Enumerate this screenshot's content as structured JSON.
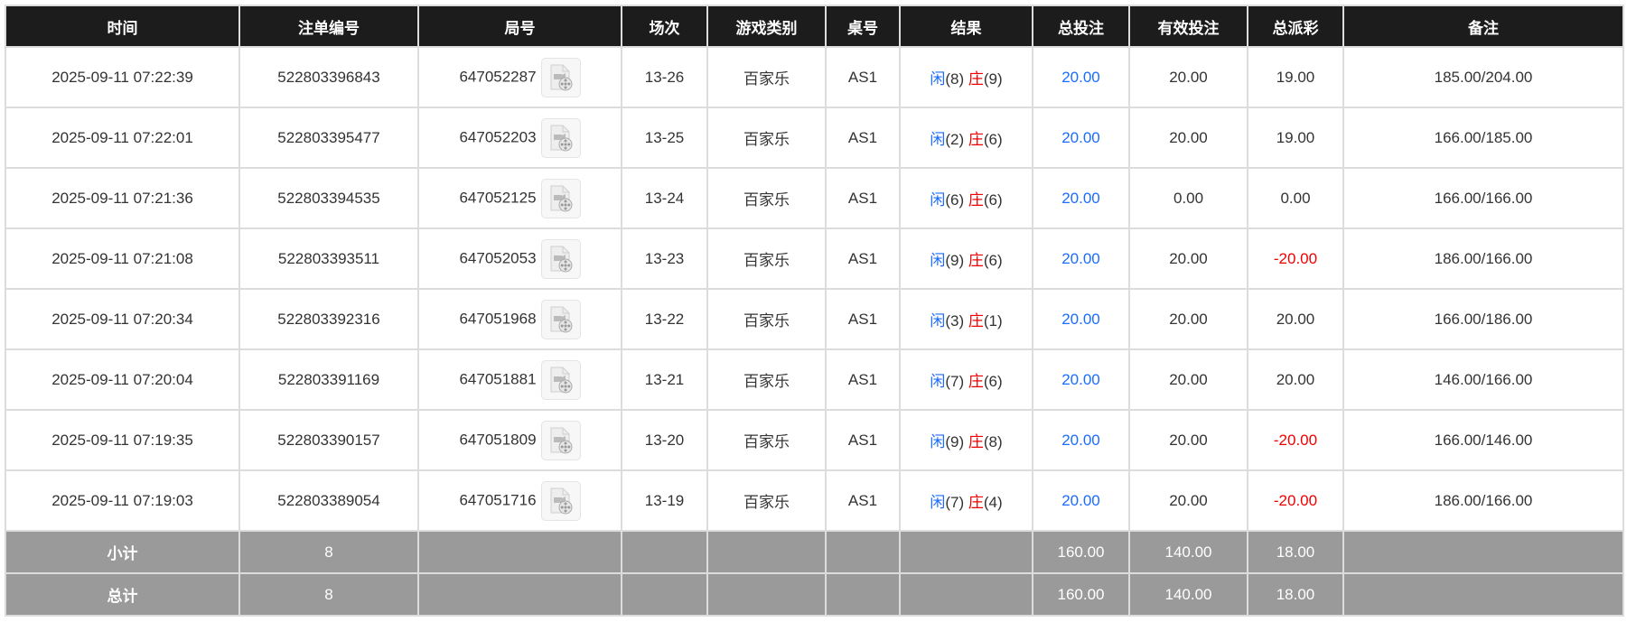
{
  "headers": [
    "时间",
    "注单编号",
    "局号",
    "场次",
    "游戏类别",
    "桌号",
    "结果",
    "总投注",
    "有效投注",
    "总派彩",
    "备注"
  ],
  "colors": {
    "header_bg": "#1c1c1c",
    "footer_bg": "#9a9a9a",
    "player": "#1a6cff",
    "banker": "#ee0000",
    "negative": "#ee0000"
  },
  "rows": [
    {
      "time": "2025-09-11 07:22:39",
      "bet_id": "522803396843",
      "round": "647052287",
      "icon": "video-replay-icon",
      "shoe": "13-26",
      "game": "百家乐",
      "table": "AS1",
      "player_label": "闲",
      "player_score": "(8)",
      "banker_label": "庄",
      "banker_score": "(9)",
      "total_bet": "20.00",
      "valid_bet": "20.00",
      "payout": "19.00",
      "payout_negative": false,
      "note": "185.00/204.00"
    },
    {
      "time": "2025-09-11 07:22:01",
      "bet_id": "522803395477",
      "round": "647052203",
      "icon": "video-replay-icon",
      "shoe": "13-25",
      "game": "百家乐",
      "table": "AS1",
      "player_label": "闲",
      "player_score": "(2)",
      "banker_label": "庄",
      "banker_score": "(6)",
      "total_bet": "20.00",
      "valid_bet": "20.00",
      "payout": "19.00",
      "payout_negative": false,
      "note": "166.00/185.00"
    },
    {
      "time": "2025-09-11 07:21:36",
      "bet_id": "522803394535",
      "round": "647052125",
      "icon": "video-replay-icon",
      "shoe": "13-24",
      "game": "百家乐",
      "table": "AS1",
      "player_label": "闲",
      "player_score": "(6)",
      "banker_label": "庄",
      "banker_score": "(6)",
      "total_bet": "20.00",
      "valid_bet": "0.00",
      "payout": "0.00",
      "payout_negative": false,
      "note": "166.00/166.00"
    },
    {
      "time": "2025-09-11 07:21:08",
      "bet_id": "522803393511",
      "round": "647052053",
      "icon": "video-replay-icon",
      "shoe": "13-23",
      "game": "百家乐",
      "table": "AS1",
      "player_label": "闲",
      "player_score": "(9)",
      "banker_label": "庄",
      "banker_score": "(6)",
      "total_bet": "20.00",
      "valid_bet": "20.00",
      "payout": "-20.00",
      "payout_negative": true,
      "note": "186.00/166.00"
    },
    {
      "time": "2025-09-11 07:20:34",
      "bet_id": "522803392316",
      "round": "647051968",
      "icon": "video-replay-icon",
      "shoe": "13-22",
      "game": "百家乐",
      "table": "AS1",
      "player_label": "闲",
      "player_score": "(3)",
      "banker_label": "庄",
      "banker_score": "(1)",
      "total_bet": "20.00",
      "valid_bet": "20.00",
      "payout": "20.00",
      "payout_negative": false,
      "note": "166.00/186.00"
    },
    {
      "time": "2025-09-11 07:20:04",
      "bet_id": "522803391169",
      "round": "647051881",
      "icon": "video-replay-icon",
      "shoe": "13-21",
      "game": "百家乐",
      "table": "AS1",
      "player_label": "闲",
      "player_score": "(7)",
      "banker_label": "庄",
      "banker_score": "(6)",
      "total_bet": "20.00",
      "valid_bet": "20.00",
      "payout": "20.00",
      "payout_negative": false,
      "note": "146.00/166.00"
    },
    {
      "time": "2025-09-11 07:19:35",
      "bet_id": "522803390157",
      "round": "647051809",
      "icon": "video-replay-icon",
      "shoe": "13-20",
      "game": "百家乐",
      "table": "AS1",
      "player_label": "闲",
      "player_score": "(9)",
      "banker_label": "庄",
      "banker_score": "(8)",
      "total_bet": "20.00",
      "valid_bet": "20.00",
      "payout": "-20.00",
      "payout_negative": true,
      "note": "166.00/146.00"
    },
    {
      "time": "2025-09-11 07:19:03",
      "bet_id": "522803389054",
      "round": "647051716",
      "icon": "video-replay-icon",
      "shoe": "13-19",
      "game": "百家乐",
      "table": "AS1",
      "player_label": "闲",
      "player_score": "(7)",
      "banker_label": "庄",
      "banker_score": "(4)",
      "total_bet": "20.00",
      "valid_bet": "20.00",
      "payout": "-20.00",
      "payout_negative": true,
      "note": "186.00/166.00"
    }
  ],
  "subtotal": {
    "label": "小计",
    "count": "8",
    "total_bet": "160.00",
    "valid_bet": "140.00",
    "payout": "18.00"
  },
  "grandtotal": {
    "label": "总计",
    "count": "8",
    "total_bet": "160.00",
    "valid_bet": "140.00",
    "payout": "18.00"
  }
}
